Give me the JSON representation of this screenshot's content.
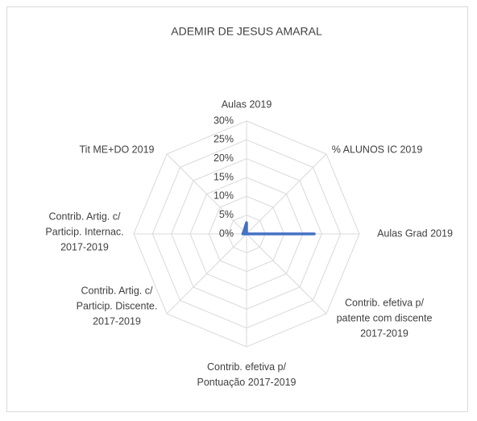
{
  "chart_data": {
    "type": "radar",
    "title": "ADEMIR DE JESUS AMARAL",
    "categories": [
      "Aulas 2019",
      "% ALUNOS IC 2019",
      "Aulas Grad 2019",
      "Contrib. efetiva p/ patente com discente 2017-2019",
      "Contrib. efetiva p/ Pontuação 2017-2019",
      "Contrib. Artig. c/ Particip. Discente. 2017-2019",
      "Contrib. Artig. c/ Particip. Internac. 2017-2019",
      "Tit ME+DO 2019"
    ],
    "series": [
      {
        "name": "ADEMIR DE JESUS AMARAL",
        "color": "#4472c4",
        "values": [
          3,
          0,
          18,
          0,
          0,
          0,
          1,
          1
        ]
      }
    ],
    "ylim": [
      0,
      30
    ],
    "yticks": [
      {
        "value": 0,
        "label": "0%"
      },
      {
        "value": 5,
        "label": "5%"
      },
      {
        "value": 10,
        "label": "10%"
      },
      {
        "value": 15,
        "label": "15%"
      },
      {
        "value": 20,
        "label": "20%"
      },
      {
        "value": 25,
        "label": "25%"
      },
      {
        "value": 30,
        "label": "30%"
      }
    ],
    "grid": true
  }
}
